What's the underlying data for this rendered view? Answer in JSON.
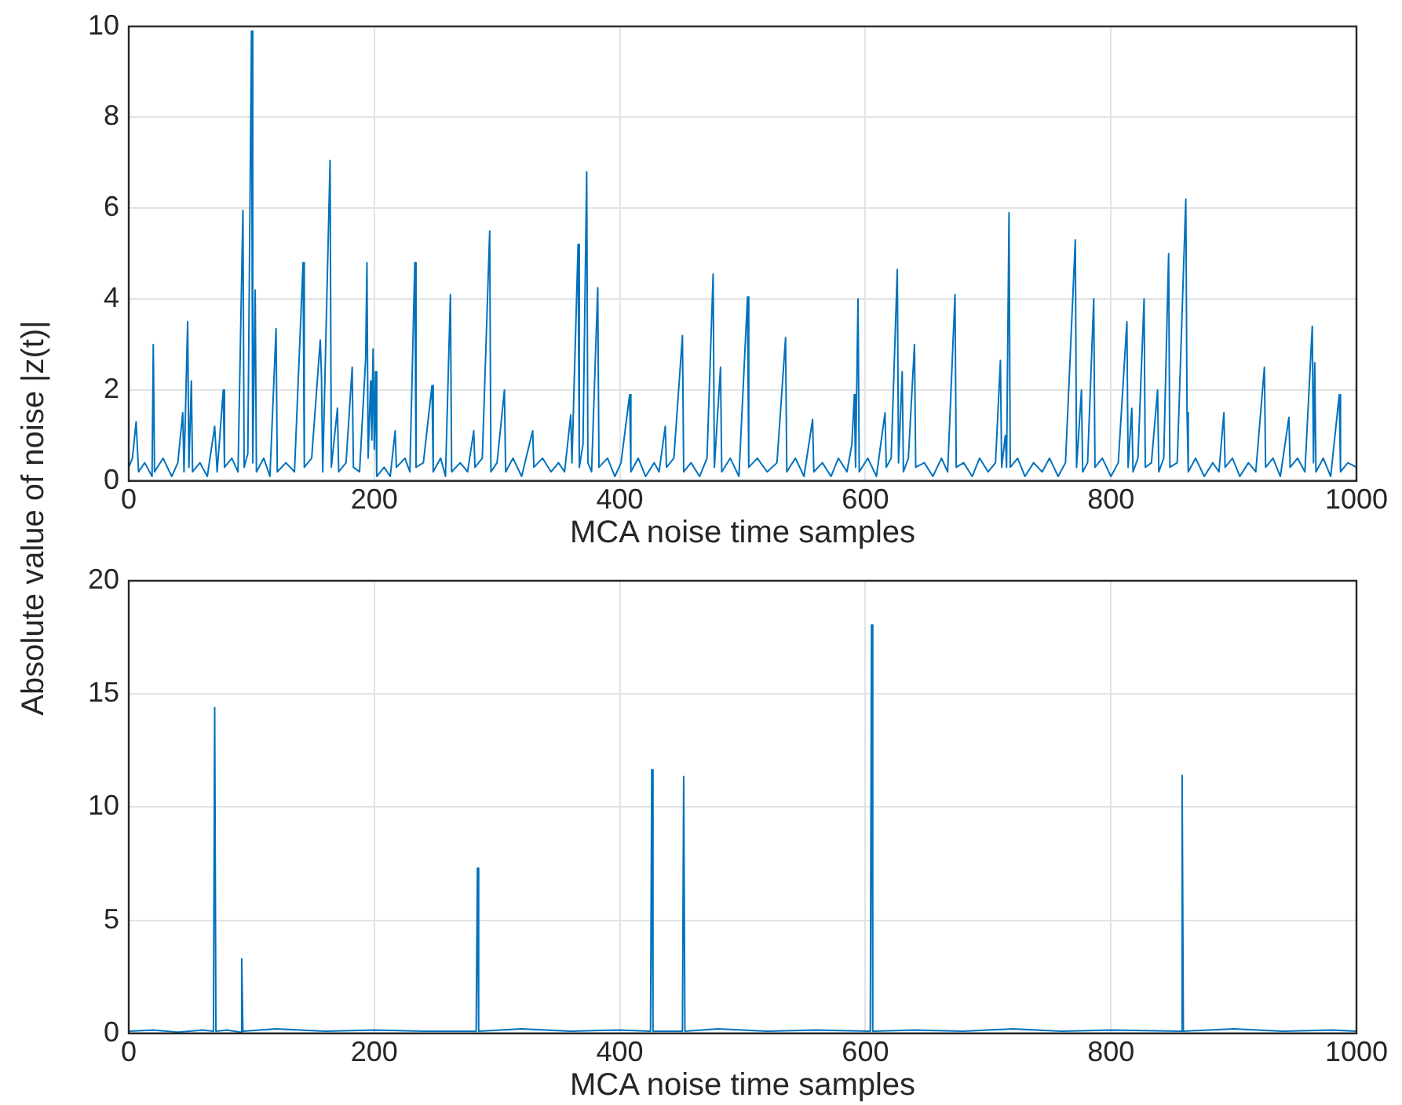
{
  "chart_data": [
    {
      "type": "line",
      "xlabel": "MCA noise time samples",
      "ylabel": "Absolute value of noise |z(t)|",
      "xlim": [
        0,
        1000
      ],
      "xticks": [
        0,
        200,
        400,
        600,
        800,
        1000
      ],
      "ylim": [
        0,
        10
      ],
      "yticks": [
        0,
        2,
        4,
        6,
        8,
        10
      ],
      "grid": true,
      "legend": false,
      "series": [
        {
          "color": "#0072bd",
          "x": [
            0,
            3,
            6,
            8,
            13,
            19,
            20,
            21,
            28,
            35,
            40,
            44,
            45,
            48,
            49,
            51,
            52,
            58,
            64,
            70,
            72,
            77,
            78,
            84,
            89,
            93,
            94,
            97,
            100,
            101,
            103,
            104,
            110,
            115,
            120,
            121,
            128,
            135,
            142,
            143,
            149,
            156,
            157,
            158,
            164,
            165,
            170,
            171,
            177,
            182,
            183,
            188,
            193,
            194,
            195,
            197,
            198,
            199,
            200,
            201,
            202,
            208,
            213,
            217,
            218,
            225,
            229,
            233,
            234,
            240,
            247,
            248,
            254,
            258,
            262,
            263,
            270,
            276,
            281,
            282,
            288,
            294,
            295,
            300,
            306,
            307,
            313,
            320,
            329,
            330,
            337,
            344,
            350,
            355,
            360,
            361,
            366,
            367,
            370,
            373,
            374,
            377,
            382,
            383,
            390,
            396,
            401,
            408,
            409,
            415,
            421,
            428,
            432,
            437,
            438,
            444,
            451,
            452,
            458,
            465,
            471,
            476,
            477,
            482,
            483,
            490,
            497,
            504,
            505,
            512,
            520,
            528,
            535,
            536,
            543,
            550,
            557,
            558,
            565,
            572,
            578,
            585,
            589,
            591,
            592,
            594,
            595,
            602,
            609,
            616,
            617,
            621,
            626,
            627,
            630,
            631,
            635,
            640,
            641,
            648,
            655,
            662,
            667,
            673,
            674,
            680,
            687,
            693,
            700,
            706,
            710,
            711,
            714,
            715,
            717,
            718,
            724,
            730,
            737,
            744,
            750,
            757,
            763,
            771,
            772,
            776,
            777,
            781,
            786,
            787,
            793,
            800,
            806,
            813,
            814,
            817,
            818,
            822,
            827,
            828,
            833,
            838,
            839,
            843,
            847,
            848,
            854,
            861,
            862,
            863,
            869,
            876,
            883,
            888,
            892,
            893,
            899,
            905,
            912,
            918,
            925,
            926,
            932,
            938,
            945,
            946,
            952,
            958,
            964,
            965,
            966,
            967,
            973,
            979,
            986,
            987,
            993,
            1000
          ],
          "values": [
            0.3,
            0.5,
            1.3,
            0.2,
            0.4,
            0.1,
            3.0,
            0.2,
            0.5,
            0.1,
            0.4,
            1.5,
            0.2,
            3.5,
            0.3,
            2.2,
            0.2,
            0.4,
            0.1,
            1.2,
            0.2,
            2.0,
            0.3,
            0.5,
            0.2,
            5.95,
            0.3,
            0.6,
            9.9,
            0.4,
            4.2,
            0.2,
            0.5,
            0.1,
            3.35,
            0.2,
            0.4,
            0.2,
            4.8,
            0.3,
            0.5,
            3.1,
            2.3,
            0.2,
            7.05,
            0.3,
            1.6,
            0.2,
            0.4,
            2.5,
            0.3,
            0.2,
            2.7,
            4.8,
            0.5,
            2.2,
            0.9,
            2.9,
            0.7,
            2.4,
            0.1,
            0.3,
            0.1,
            1.1,
            0.3,
            0.5,
            0.2,
            4.8,
            0.3,
            0.4,
            2.1,
            0.2,
            0.5,
            0.1,
            4.1,
            0.2,
            0.4,
            0.2,
            1.1,
            0.3,
            0.5,
            5.5,
            0.2,
            0.4,
            2.0,
            0.2,
            0.5,
            0.1,
            1.1,
            0.3,
            0.5,
            0.2,
            0.4,
            0.2,
            1.45,
            0.4,
            5.2,
            0.3,
            0.8,
            6.8,
            0.4,
            0.2,
            4.25,
            0.3,
            0.5,
            0.1,
            0.4,
            1.9,
            0.2,
            0.5,
            0.1,
            0.4,
            0.2,
            1.2,
            0.3,
            0.5,
            3.2,
            0.2,
            0.4,
            0.1,
            0.5,
            4.55,
            0.3,
            2.5,
            0.2,
            0.5,
            0.1,
            4.05,
            0.3,
            0.5,
            0.2,
            0.4,
            3.15,
            0.2,
            0.5,
            0.1,
            1.35,
            0.2,
            0.4,
            0.1,
            0.5,
            0.2,
            0.8,
            1.9,
            0.3,
            4.0,
            0.2,
            0.5,
            0.1,
            1.5,
            0.3,
            0.5,
            4.65,
            0.4,
            2.4,
            0.2,
            0.5,
            3.0,
            0.3,
            0.4,
            0.1,
            0.5,
            0.2,
            4.1,
            0.3,
            0.4,
            0.1,
            0.5,
            0.2,
            0.4,
            2.65,
            0.3,
            1.0,
            0.3,
            5.9,
            0.3,
            0.5,
            0.1,
            0.4,
            0.2,
            0.5,
            0.1,
            0.4,
            5.3,
            0.3,
            2.0,
            0.2,
            0.4,
            4.0,
            0.3,
            0.5,
            0.1,
            0.4,
            3.5,
            0.3,
            1.6,
            0.2,
            0.5,
            4.0,
            0.3,
            0.4,
            2.0,
            0.2,
            0.5,
            5.0,
            0.3,
            0.4,
            6.2,
            1.5,
            0.2,
            0.5,
            0.1,
            0.4,
            0.2,
            1.5,
            0.3,
            0.5,
            0.1,
            0.4,
            0.2,
            2.5,
            0.3,
            0.5,
            0.1,
            1.4,
            0.3,
            0.5,
            0.2,
            3.4,
            0.4,
            2.6,
            0.2,
            0.5,
            0.1,
            1.9,
            0.2,
            0.4,
            0.3
          ]
        }
      ]
    },
    {
      "type": "line",
      "xlabel": "MCA noise time samples",
      "xlim": [
        0,
        1000
      ],
      "xticks": [
        0,
        200,
        400,
        600,
        800,
        1000
      ],
      "ylim": [
        0,
        20
      ],
      "yticks": [
        0,
        5,
        10,
        15,
        20
      ],
      "grid": true,
      "legend": false,
      "series": [
        {
          "color": "#0072bd",
          "x": [
            0,
            20,
            40,
            60,
            69,
            70,
            71,
            80,
            91,
            92,
            93,
            120,
            160,
            200,
            240,
            283,
            284,
            285,
            320,
            360,
            400,
            425,
            426,
            427,
            451,
            452,
            453,
            480,
            520,
            560,
            604,
            605,
            606,
            640,
            680,
            720,
            760,
            800,
            857,
            858,
            859,
            900,
            940,
            980,
            1000
          ],
          "values": [
            0.1,
            0.15,
            0.05,
            0.15,
            0.1,
            14.4,
            0.1,
            0.15,
            0.05,
            3.3,
            0.1,
            0.2,
            0.1,
            0.15,
            0.1,
            0.1,
            7.3,
            0.1,
            0.2,
            0.1,
            0.15,
            0.1,
            11.65,
            0.1,
            0.1,
            11.35,
            0.1,
            0.2,
            0.1,
            0.15,
            0.1,
            18.05,
            0.1,
            0.15,
            0.1,
            0.2,
            0.1,
            0.15,
            0.1,
            11.4,
            0.1,
            0.2,
            0.1,
            0.15,
            0.1
          ]
        }
      ]
    }
  ]
}
